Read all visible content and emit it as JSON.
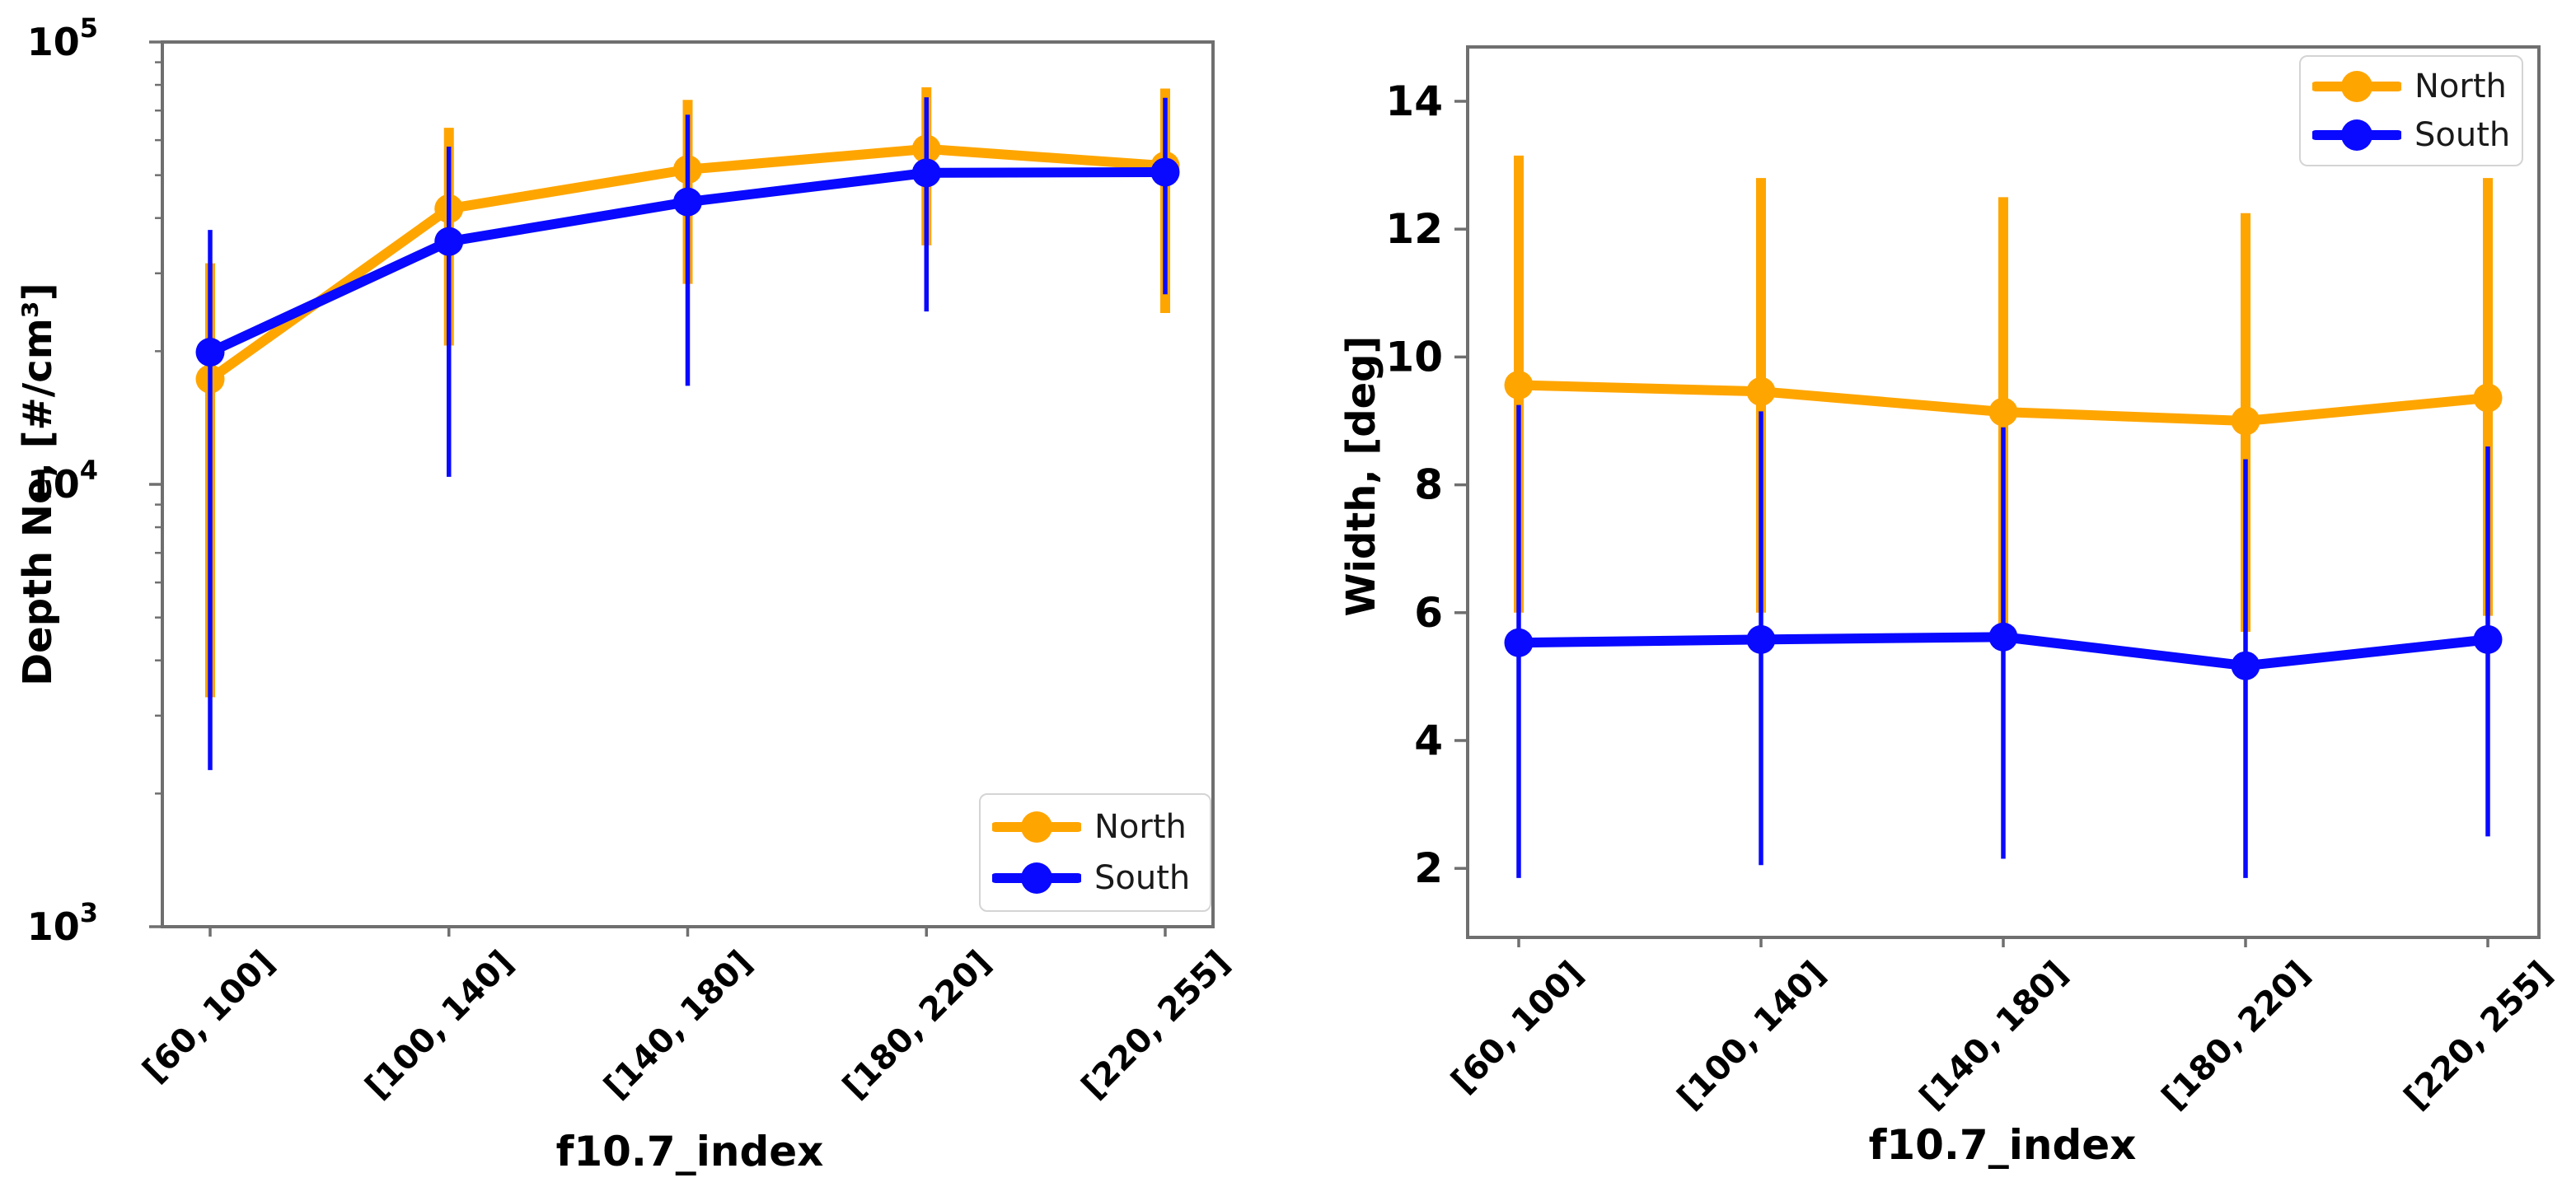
{
  "figure": {
    "background": "#ffffff",
    "axis_color": "#6f6f6f",
    "tick_label_color": "#000000",
    "legend_text_color": "#1a1a1a"
  },
  "chart_data": [
    {
      "type": "line",
      "xlabel": "f10.7_index",
      "ylabel": "Depth Ne, [#/cm³]",
      "yscale": "log",
      "ylim": [
        1000,
        100000
      ],
      "yticks": [
        "10^3",
        "10^4",
        "10^5"
      ],
      "grid": false,
      "legend_position": "lower right",
      "categories": [
        "[60, 100]",
        "[100, 140]",
        "[140, 180]",
        "[180, 220]",
        "[220, 255]"
      ],
      "series": [
        {
          "name": "North",
          "color": "#ffa500",
          "marker": "circle",
          "values": [
            17300,
            42000,
            51500,
            57300,
            52500
          ],
          "err_lo": [
            3300,
            20600,
            28400,
            34700,
            24400
          ],
          "err_hi": [
            31600,
            64000,
            74000,
            79000,
            78500
          ]
        },
        {
          "name": "South",
          "color": "#0909ff",
          "marker": "circle",
          "values": [
            19900,
            35400,
            43500,
            50600,
            50800
          ],
          "err_lo": [
            2260,
            10400,
            16700,
            24600,
            26900
          ],
          "err_hi": [
            37600,
            58000,
            68500,
            75000,
            74800
          ]
        }
      ]
    },
    {
      "type": "line",
      "xlabel": "f10.7_index",
      "ylabel": "Width, [deg]",
      "yscale": "linear",
      "ylim": [
        0.92,
        14.85
      ],
      "yticks": [
        2,
        4,
        6,
        8,
        10,
        12,
        14
      ],
      "grid": false,
      "legend_position": "upper right",
      "categories": [
        "[60, 100]",
        "[100, 140]",
        "[140, 180]",
        "[180, 220]",
        "[220, 255]"
      ],
      "series": [
        {
          "name": "North",
          "color": "#ffa500",
          "marker": "circle",
          "values": [
            9.56,
            9.46,
            9.14,
            9.0,
            9.36
          ],
          "err_lo": [
            6.0,
            6.0,
            5.75,
            5.7,
            5.95
          ],
          "err_hi": [
            13.15,
            12.8,
            12.5,
            12.25,
            12.8
          ]
        },
        {
          "name": "South",
          "color": "#0909ff",
          "marker": "circle",
          "values": [
            5.53,
            5.58,
            5.62,
            5.17,
            5.58
          ],
          "err_lo": [
            1.85,
            2.05,
            2.15,
            1.85,
            2.5
          ],
          "err_hi": [
            9.25,
            9.15,
            8.9,
            8.4,
            8.6
          ]
        }
      ]
    }
  ]
}
